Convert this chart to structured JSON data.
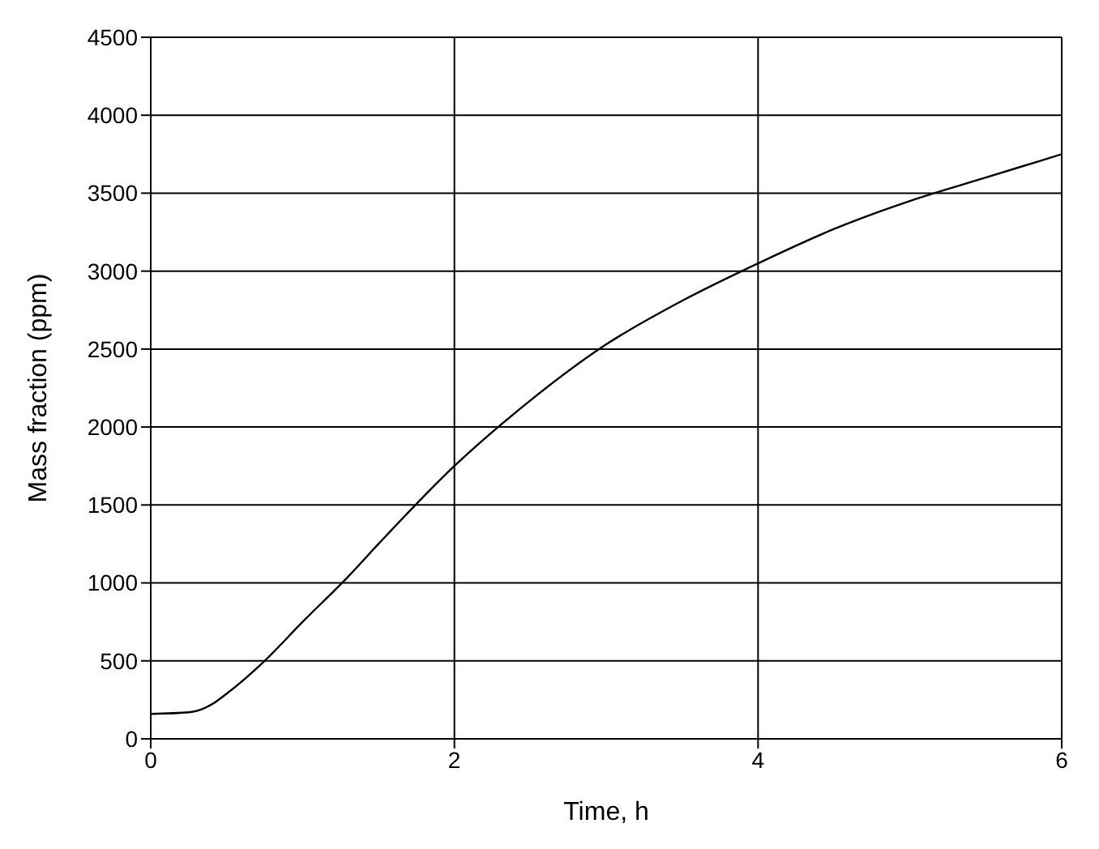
{
  "chart_data": {
    "type": "line",
    "xlabel": "Time, h",
    "ylabel": "Mass fraction (ppm)",
    "xlim": [
      0,
      6
    ],
    "xticks": [
      0,
      2,
      4,
      6
    ],
    "ylim": [
      0,
      4500
    ],
    "yticks": [
      0,
      500,
      1000,
      1500,
      2000,
      2500,
      3000,
      3500,
      4000,
      4500
    ],
    "grid": true,
    "legend": false,
    "marker": "none",
    "line_style": "solid",
    "x": [
      0,
      0.25,
      0.4,
      0.5,
      0.75,
      1,
      1.3,
      1.5,
      2,
      2.5,
      3,
      3.5,
      4,
      4.5,
      5,
      5.5,
      6
    ],
    "series": [
      {
        "color": "#000000",
        "values": [
          160,
          170,
          220,
          290,
          500,
          750,
          1040,
          1250,
          1750,
          2170,
          2530,
          2810,
          3050,
          3270,
          3450,
          3600,
          3750
        ]
      }
    ]
  }
}
